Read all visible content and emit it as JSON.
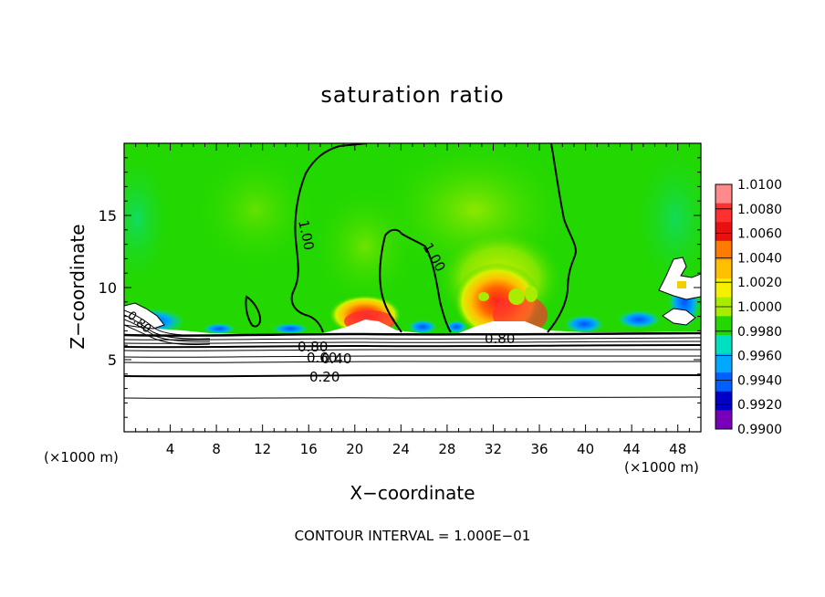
{
  "chart_data": {
    "type": "heatmap",
    "title": "saturation ratio",
    "xlabel": "X−coordinate",
    "ylabel": "Z−coordinate",
    "x_unit_left": "(×1000 m)",
    "x_unit_right": "(×1000 m)",
    "xlim": [
      0,
      50
    ],
    "ylim": [
      0,
      20
    ],
    "x_ticks": [
      4,
      8,
      12,
      16,
      20,
      24,
      28,
      32,
      36,
      40,
      44,
      48
    ],
    "y_ticks": [
      5,
      10,
      15
    ],
    "colorbar": {
      "levels": [
        "1.0100",
        "1.0080",
        "1.0060",
        "1.0040",
        "1.0020",
        "1.0000",
        "0.9980",
        "0.9960",
        "0.9940",
        "0.9920",
        "0.9900"
      ],
      "colors": [
        "#ff8a8a",
        "#ff3030",
        "#e81010",
        "#ff7a00",
        "#ffc000",
        "#f5f000",
        "#a8ec00",
        "#22d800",
        "#00dfc0",
        "#00a8ff",
        "#0060ff",
        "#0000c8",
        "#7800b8"
      ]
    },
    "contour_labels": [
      "1.00",
      "1.00",
      "0.80",
      "0.80",
      "0.60",
      "0.40",
      "0.20",
      "0.80"
    ],
    "footer": "CONTOUR INTERVAL = 1.000E−01",
    "colors": {
      "background_field": "#22d800"
    }
  }
}
